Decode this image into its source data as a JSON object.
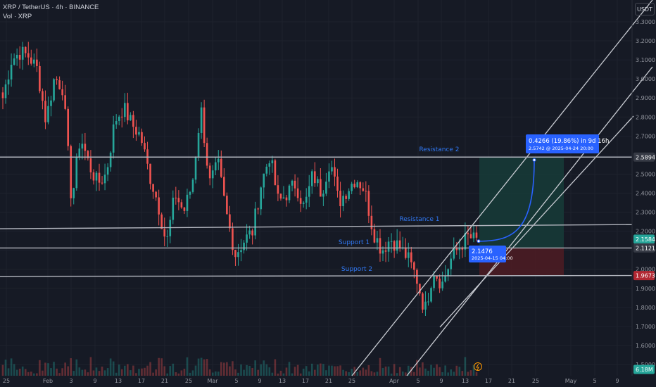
{
  "header": {
    "symbol_line": "XRP / TetherUS · 4h · BINANCE",
    "volume_line": "Vol · XRP"
  },
  "currency_button": "USDT",
  "colors": {
    "background": "#161a25",
    "bull": "#26a69a",
    "bear": "#ef5350",
    "level_line": "#b2b5be",
    "label_blue": "#3179f5",
    "profit_zone": "#163a37",
    "loss_zone": "#4a1c24",
    "price_tag_teal": "#26a69a",
    "price_tag_gray": "#363a45",
    "price_tag_red": "#b22833"
  },
  "chart_data": {
    "type": "candlestick",
    "yaxis": {
      "ticks": [
        "3.3000",
        "3.2000",
        "3.1000",
        "3.0000",
        "2.9000",
        "2.8000",
        "2.7000",
        "2.6000",
        "2.5000",
        "2.4000",
        "2.3000",
        "2.2000",
        "2.1000",
        "2.0000",
        "1.9000",
        "1.8000",
        "1.7000",
        "1.6000",
        "1.5000"
      ],
      "range": [
        1.48,
        3.36
      ]
    },
    "xaxis": {
      "ticks": [
        "25",
        "Feb",
        "3",
        "9",
        "13",
        "17",
        "21",
        "25",
        "Mar",
        "5",
        "9",
        "13",
        "17",
        "21",
        "25",
        "Apr",
        "5",
        "9",
        "13",
        "17",
        "21",
        "25",
        "May",
        "5",
        "9"
      ]
    },
    "levels": [
      {
        "name": "Resistance 2",
        "price_left": 2.5894,
        "price_right": 2.5894
      },
      {
        "name": "Resistance 1",
        "price_left": 2.213,
        "price_right": 2.235
      },
      {
        "name": "Support 1",
        "price_left": 2.1121,
        "price_right": 2.1121
      },
      {
        "name": "Support 2",
        "price_left": 1.963,
        "price_right": 1.9673
      }
    ],
    "position_tool": {
      "entry": 2.1121,
      "target": 2.5894,
      "stop": 1.9673
    },
    "measure": {
      "text": "0.4266 (19.86%) in 9d 16h",
      "sub": "2.5742 @ 2025-04-24  20:00",
      "start_price": 2.1476,
      "start_label": "2.1476",
      "start_time": "2025-04-15 04:00",
      "end_price": 2.5742
    },
    "price_tags": [
      {
        "value": "2.5894",
        "price": 2.5894,
        "style": "gray"
      },
      {
        "value": "2.1584",
        "price": 2.1584,
        "style": "teal"
      },
      {
        "value": "2.1121",
        "price": 2.1121,
        "style": "gray"
      },
      {
        "value": "1.9673",
        "price": 1.9673,
        "style": "red"
      },
      {
        "value": "6.18M",
        "price": 1.505,
        "style": "teal"
      }
    ],
    "key_closes": [
      2.9,
      3.1,
      3.14,
      3.12,
      3.05,
      2.78,
      3.01,
      2.95,
      2.35,
      2.7,
      2.55,
      2.45,
      2.5,
      2.78,
      2.85,
      2.76,
      2.7,
      2.5,
      2.35,
      2.13,
      2.4,
      2.3,
      2.45,
      2.85,
      2.45,
      2.55,
      2.28,
      2.08,
      2.15,
      2.2,
      2.45,
      2.6,
      2.35,
      2.4,
      2.45,
      2.32,
      2.5,
      2.4,
      2.58,
      2.35,
      2.42,
      2.48,
      2.42,
      2.2,
      2.1,
      2.16,
      2.12,
      2.06,
      1.96,
      1.78,
      2.0,
      1.92,
      2.05,
      2.12,
      2.17,
      2.15
    ]
  }
}
